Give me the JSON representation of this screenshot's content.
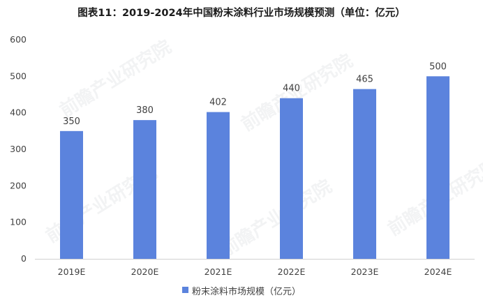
{
  "chart_data": {
    "type": "bar",
    "title": "图表11：2019-2024年中国粉末涂料行业市场规模预测（单位：亿元）",
    "categories": [
      "2019E",
      "2020E",
      "2021E",
      "2022E",
      "2023E",
      "2024E"
    ],
    "series": [
      {
        "name": "粉末涂料市场规模（亿元）",
        "values": [
          350,
          380,
          402,
          440,
          465,
          500
        ],
        "color": "#5B83DD"
      }
    ],
    "ylim": [
      0,
      600
    ],
    "yticks": [
      0,
      100,
      200,
      300,
      400,
      500,
      600
    ],
    "grid": false,
    "legend": "bottom-center",
    "data_labels": true
  },
  "watermark_text": "前瞻产业研究院"
}
